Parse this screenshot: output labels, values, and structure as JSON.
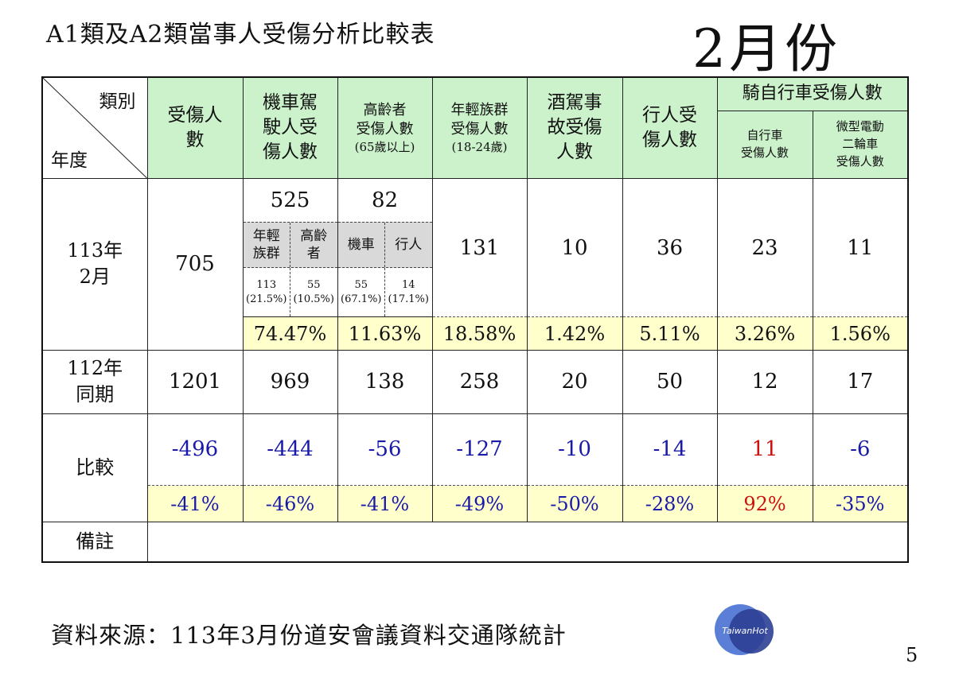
{
  "title": "A1類及A2類當事人受傷分析比較表",
  "month": "2月份",
  "header": {
    "category": "類別",
    "year": "年度",
    "injured": [
      "受傷人",
      "數"
    ],
    "moto": [
      "機車駕",
      "駛人受",
      "傷人數"
    ],
    "elderly": [
      "高齡者",
      "受傷人數",
      "(65歲以上)"
    ],
    "youth": [
      "年輕族群",
      "受傷人數",
      "(18-24歲)"
    ],
    "drunk": [
      "酒駕事",
      "故受傷",
      "人數"
    ],
    "pedestrian": [
      "行人受",
      "傷人數"
    ],
    "cyclist_group": "騎自行車受傷人數",
    "bicycle": [
      "自行車",
      "受傷人數"
    ],
    "ebike": [
      "微型電動",
      "二輪車",
      "受傷人數"
    ]
  },
  "row113": {
    "label": [
      "113年",
      "2月"
    ],
    "injured": "705",
    "moto": "525",
    "moto_sub": {
      "h1": [
        "年輕",
        "族群"
      ],
      "h2": [
        "高齡",
        "者"
      ],
      "v1": [
        "113",
        "(21.5%)"
      ],
      "v2": [
        "55",
        "(10.5%)"
      ]
    },
    "elderly": "82",
    "elderly_sub": {
      "h1": "機車",
      "h2": "行人",
      "v1": [
        "55",
        "(67.1%)"
      ],
      "v2": [
        "14",
        "(17.1%)"
      ]
    },
    "youth": "131",
    "drunk": "10",
    "pedestrian": "36",
    "bicycle": "23",
    "ebike": "11",
    "pct": [
      "74.47%",
      "11.63%",
      "18.58%",
      "1.42%",
      "5.11%",
      "3.26%",
      "1.56%"
    ]
  },
  "row112": {
    "label": [
      "112年",
      "同期"
    ],
    "values": [
      "1201",
      "969",
      "138",
      "258",
      "20",
      "50",
      "12",
      "17"
    ]
  },
  "compare": {
    "label": "比較",
    "values": [
      "-496",
      "-444",
      "-56",
      "-127",
      "-10",
      "-14",
      "11",
      "-6"
    ],
    "pct": [
      "-41%",
      "-46%",
      "-41%",
      "-49%",
      "-50%",
      "-28%",
      "92%",
      "-35%"
    ]
  },
  "remarks": {
    "label": "備註"
  },
  "source": "資料來源：113年3月份道安會議資料交通隊統計",
  "logo_text": "TaiwanHot",
  "page_number": "5",
  "colors": {
    "header_bg": "#ccf2cc",
    "pct_bg": "#ffffcc",
    "negative": "#1a1aa8",
    "positive": "#cc1111"
  }
}
